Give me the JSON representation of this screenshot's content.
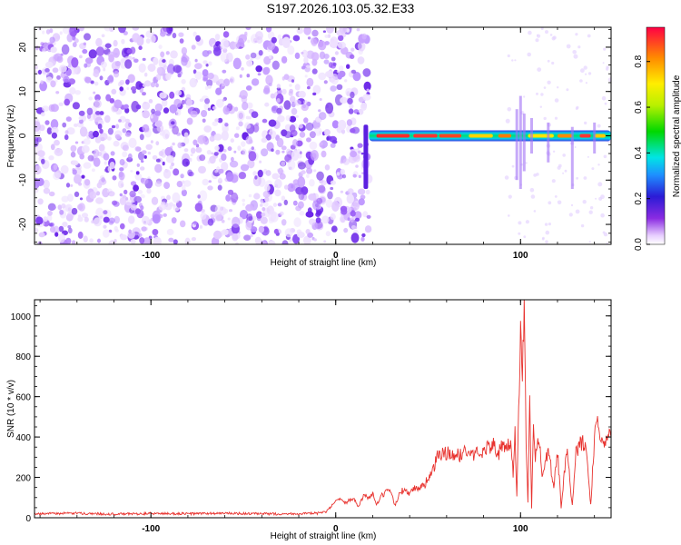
{
  "title": "S197.2026.103.05.32.E33",
  "colors": {
    "snr_line": "#e8322e",
    "spectrogram_scatter": "#7d3cf0"
  },
  "chart_data": [
    {
      "type": "heatmap",
      "xlabel": "Height of straight line (km)",
      "ylabel": "Frequency (Hz)",
      "xlim": [
        -163,
        149
      ],
      "ylim": [
        -24.5,
        24.5
      ],
      "xticks": [
        -100,
        0,
        100
      ],
      "yticks": [
        -20,
        -10,
        0,
        10,
        20
      ],
      "colorbar": {
        "label": "Normalized spectral amplitude",
        "range": [
          0,
          0.95
        ],
        "ticks": [
          "0.0",
          "0.2",
          "0.4",
          "0.6",
          "0.8"
        ],
        "colormap": "rainbow"
      },
      "signal_band": {
        "frequency": 0,
        "x_start": 18,
        "x_end": 149
      }
    },
    {
      "type": "line",
      "xlabel": "Height of straight line (km)",
      "ylabel": "SNR (10 * v/v)",
      "xlim": [
        -163,
        149
      ],
      "ylim": [
        0,
        1080
      ],
      "xticks": [
        -100,
        0,
        100
      ],
      "yticks": [
        0,
        200,
        400,
        600,
        800,
        1000
      ],
      "series": [
        {
          "x": [
            -163,
            -140,
            -120,
            -100,
            -80,
            -60,
            -40,
            -20,
            -10,
            -5,
            -2,
            0,
            2,
            5,
            8,
            10,
            12,
            15,
            18,
            20,
            22,
            25,
            28,
            30,
            32,
            35,
            38,
            40,
            42,
            45,
            48,
            50,
            52,
            55,
            56,
            60,
            65,
            70,
            75,
            80,
            85,
            88,
            90,
            92,
            94,
            95,
            96,
            97,
            98,
            99,
            100,
            101,
            102,
            103,
            104,
            105,
            106,
            107,
            108,
            110,
            112,
            115,
            118,
            120,
            122,
            125,
            128,
            130,
            132,
            135,
            138,
            140,
            142,
            145,
            147,
            149
          ],
          "y": [
            20,
            22,
            18,
            21,
            20,
            22,
            19,
            20,
            22,
            30,
            60,
            80,
            90,
            70,
            95,
            100,
            50,
            110,
            100,
            120,
            60,
            110,
            130,
            120,
            60,
            130,
            140,
            120,
            145,
            150,
            160,
            200,
            220,
            300,
            310,
            320,
            300,
            330,
            310,
            340,
            360,
            320,
            350,
            330,
            360,
            380,
            200,
            420,
            100,
            560,
            900,
            700,
            1080,
            400,
            80,
            600,
            50,
            500,
            300,
            380,
            200,
            340,
            150,
            330,
            50,
            340,
            60,
            320,
            360,
            380,
            60,
            400,
            460,
            380,
            420,
            400
          ]
        }
      ]
    }
  ]
}
